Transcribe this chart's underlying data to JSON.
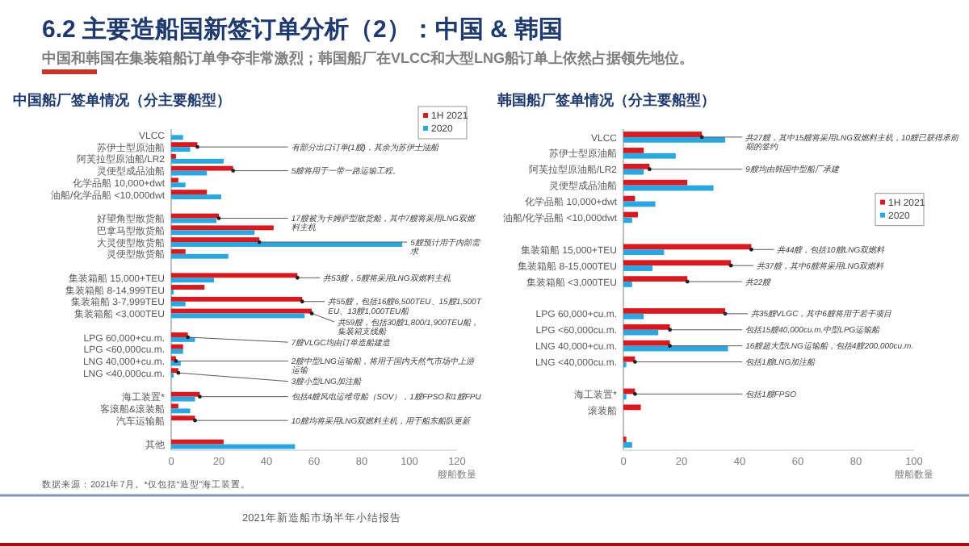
{
  "chart_data": [
    {
      "type": "other",
      "title": "6.2 主要造船国新签订单分析（2）：中国 & 韩国",
      "subtitle": "中国和韩国在集装箱船订单争夺非常激烈；韩国船厂在VLCC和大型LNG船订单上依然占据领先地位。",
      "annotations": [
        "数据来源：2021年7月。*仅包括“造型”海工装置。",
        "2021年新造船市场半年小结报告"
      ]
    },
    {
      "type": "bar",
      "orientation": "horizontal",
      "title": "中国船厂签单情况（分主要船型）",
      "xlabel": "艘船数量",
      "legend": "top right",
      "xlim": [
        0,
        120
      ],
      "xticks": [
        0,
        20,
        40,
        60,
        80,
        100,
        120
      ],
      "categories": [
        "VLCC",
        "苏伊士型原油船",
        "阿芙拉型原油船/LR2",
        "灵便型成品油船",
        "化学品船 10,000+dwt",
        "油船/化学品船 <10,000dwt",
        null,
        "好望角型散货船",
        "巴拿马型散货船",
        "大灵便型散货船",
        "灵便型散货船",
        null,
        "集装箱船 15,000+TEU",
        "集装箱船 8-14,999TEU",
        "集装箱船 3-7,999TEU",
        "集装箱船 <3,000TEU",
        null,
        "LPG 60,000+cu.m.",
        "LPG <60,000cu.m.",
        "LNG 40,000+cu.m.",
        "LNG <40,000cu.m.",
        null,
        "海工装置*",
        "客滚船&滚装船",
        "汽车运输船",
        null,
        "其他"
      ],
      "series": [
        {
          "name": "1H 2021",
          "color": "#d71920",
          "values": [
            0,
            11,
            2,
            26,
            3,
            15,
            null,
            20,
            43,
            37,
            6,
            null,
            53,
            14,
            55,
            59,
            null,
            7,
            5,
            2,
            3,
            null,
            12,
            3,
            10,
            null,
            22
          ]
        },
        {
          "name": "2020",
          "color": "#2ba6de",
          "values": [
            5,
            8,
            22,
            15,
            6,
            21,
            null,
            19,
            35,
            97,
            24,
            null,
            18,
            1,
            6,
            56,
            null,
            10,
            5,
            4,
            1,
            null,
            10,
            8,
            0,
            null,
            52
          ]
        }
      ],
      "annotations": [
        {
          "text": "有部分出口订单(1艘)，其余为苏伊士油船",
          "x": 11,
          "y": "苏伊士型原油船"
        },
        {
          "text": "5艘将用于一带一路运输工程。",
          "x": 26,
          "y": "灵便型成品油船"
        },
        {
          "text": "17艘被为卡姆萨型散货船，其中7艘将采用LNG双燃料主机",
          "x": 20,
          "y": "好望角型散货船"
        },
        {
          "text": "5艘预计用于内部需求",
          "x": 37,
          "y": "大灵便型散货船"
        },
        {
          "text": "共53艘，5艘将采用LNG双燃料主机",
          "x": 53,
          "y": "集装箱船 15,000+TEU"
        },
        {
          "text": "共55艘，包括16艘6,500TEU、15艘1,500TEU、13艘1,000TEU船",
          "x": 55,
          "y": "集装箱船 3-7,999TEU"
        },
        {
          "text": "共59艘，包括30艘1,800/1,900TEU船，集装箱支线船",
          "x": 59,
          "y": "集装箱船 <3,000TEU"
        },
        {
          "text": "7艘VLGC均由订单造船建造",
          "x": 7,
          "y": "LPG 60,000+cu.m."
        },
        {
          "text": "2艘中型LNG运输船，将用于国内天然气市场中上游运输",
          "x": 2,
          "y": "LNG 40,000+cu.m."
        },
        {
          "text": "3艘小型LNG加注船",
          "x": 3,
          "y": "LNG <40,000cu.m."
        },
        {
          "text": "包括4艘风电运维母船（SOV），1艘FPSO和1艘FPU",
          "x": 12,
          "y": "海工装置*"
        },
        {
          "text": "10艘均将采用LNG双燃料主机，用于船东船队更新",
          "x": 10,
          "y": "汽车运输船"
        }
      ]
    },
    {
      "type": "bar",
      "orientation": "horizontal",
      "title": "韩国船厂签单情况（分主要船型）",
      "xlabel": "艘船数量",
      "legend": "right",
      "xlim": [
        0,
        100
      ],
      "xticks": [
        0,
        20,
        40,
        60,
        80,
        100
      ],
      "categories": [
        "VLCC",
        "苏伊士型原油船",
        "阿芙拉型原油船/LR2",
        "灵便型成品油船",
        "化学品船 10,000+dwt",
        "油船/化学品船 <10,000dwt",
        null,
        "集装箱船 15,000+TEU",
        "集装箱船 8-15,000TEU",
        "集装箱船 <3,000TEU",
        null,
        "LPG 60,000+cu.m.",
        "LPG <60,000cu.m.",
        "LNG 40,000+cu.m.",
        "LNG <40,000cu.m.",
        null,
        "海工装置*",
        "滚装船",
        null,
        null
      ],
      "series": [
        {
          "name": "1H 2021",
          "color": "#d71920",
          "values": [
            27,
            7,
            9,
            22,
            4,
            5,
            null,
            44,
            37,
            22,
            null,
            35,
            16,
            16,
            4,
            null,
            4,
            6,
            null,
            1
          ]
        },
        {
          "name": "2020",
          "color": "#2ba6de",
          "values": [
            35,
            18,
            7,
            31,
            11,
            3,
            null,
            14,
            10,
            3,
            null,
            7,
            12,
            36,
            1,
            null,
            1,
            0,
            null,
            3
          ]
        }
      ],
      "annotations": [
        {
          "text": "共27艘，其中15艘将采用LNG双燃料主机，10艘已获得承前期的签约",
          "x": 27,
          "y": "VLCC"
        },
        {
          "text": "9艘均由韩国中型船厂承建",
          "x": 9,
          "y": "阿芙拉型原油船/LR2"
        },
        {
          "text": "共44艘，包括10艘LNG双燃料",
          "x": 44,
          "y": "集装箱船 15,000+TEU"
        },
        {
          "text": "共37艘，其中6艘将采用LNG双燃料",
          "x": 37,
          "y": "集装箱船 8-15,000TEU"
        },
        {
          "text": "共22艘",
          "x": 22,
          "y": "集装箱船 <3,000TEU"
        },
        {
          "text": "共35艘VLGC，其中6艘将用于若干项目",
          "x": 35,
          "y": "LPG 60,000+cu.m."
        },
        {
          "text": "包括15艘40,000cu.m.中型LPG运输船",
          "x": 16,
          "y": "LPG <60,000cu.m."
        },
        {
          "text": "16艘超大型LNG运输船，包括4艘200,000cu.m.",
          "x": 16,
          "y": "LNG 40,000+cu.m."
        },
        {
          "text": "包括1艘LNG加注船",
          "x": 4,
          "y": "LNG <40,000cu.m."
        },
        {
          "text": "包括1艘FPSO",
          "x": 4,
          "y": "海工装置*"
        }
      ]
    }
  ]
}
